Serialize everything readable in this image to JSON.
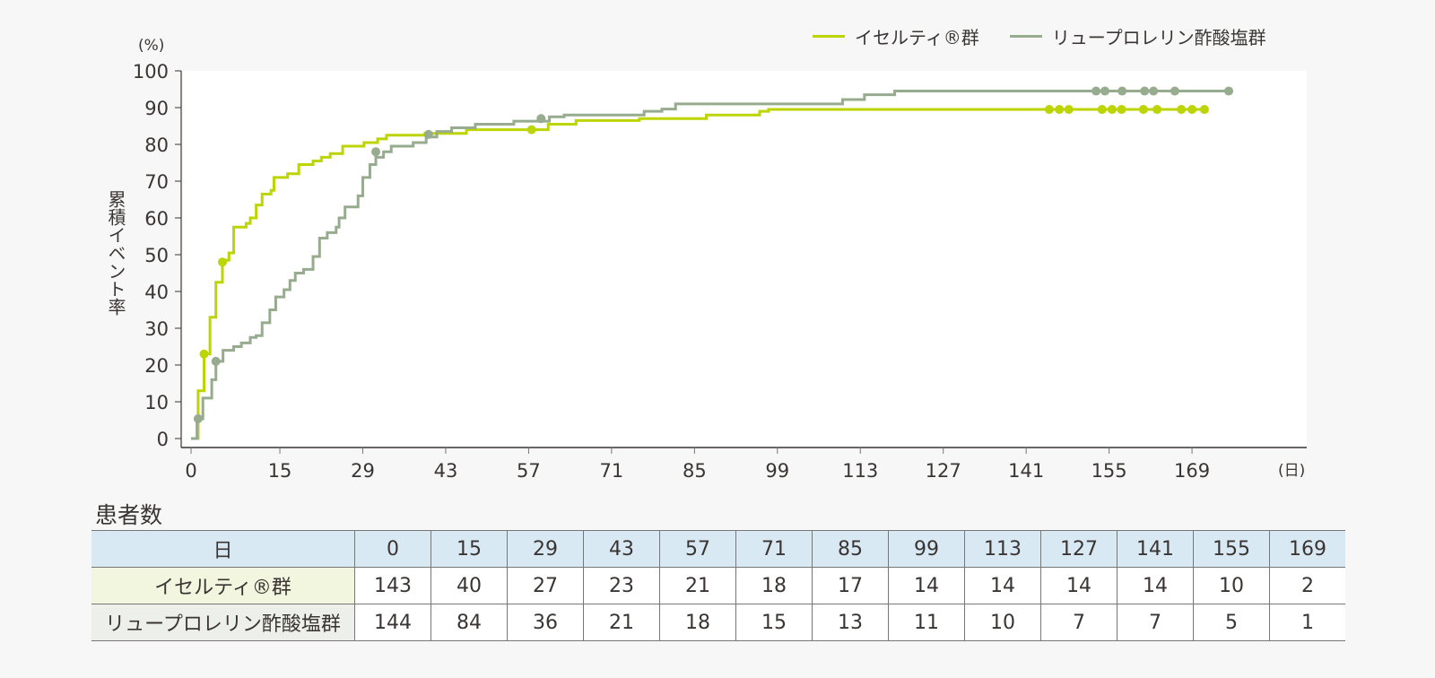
{
  "legend": {
    "series1_label": "イセルティ®群",
    "series2_label": "リュープロレリン酢酸塩群"
  },
  "axes": {
    "y_unit": "(%)",
    "x_unit": "(日)",
    "y_label": "累積イベント率"
  },
  "colors": {
    "series1": "#bcd400",
    "series2": "#97ab8e",
    "axis": "#3a3533",
    "plot_bg": "#ffffff",
    "page_bg": "#f7f7f7"
  },
  "table": {
    "title": "患者数",
    "header_label": "日",
    "days": [
      "0",
      "15",
      "29",
      "43",
      "57",
      "71",
      "85",
      "99",
      "113",
      "127",
      "141",
      "155",
      "169"
    ],
    "rows": [
      {
        "label": "イセルティ®群",
        "values": [
          "143",
          "40",
          "27",
          "23",
          "21",
          "18",
          "17",
          "14",
          "14",
          "14",
          "14",
          "10",
          "2"
        ]
      },
      {
        "label": "リュープロレリン酢酸塩群",
        "values": [
          "144",
          "84",
          "36",
          "21",
          "18",
          "15",
          "13",
          "11",
          "10",
          "7",
          "7",
          "5",
          "1"
        ]
      }
    ]
  },
  "chart_data": {
    "type": "line",
    "subtype": "kaplan-meier-cumulative-incidence-step",
    "title": "",
    "xlabel": "(日)",
    "ylabel": "累積イベント率 (%)",
    "xlim": [
      0,
      180
    ],
    "ylim": [
      0,
      100
    ],
    "x_ticks": [
      0,
      15,
      29,
      43,
      57,
      71,
      85,
      99,
      113,
      127,
      141,
      155,
      169
    ],
    "y_ticks": [
      0,
      10,
      20,
      30,
      40,
      50,
      60,
      70,
      80,
      90,
      100
    ],
    "grid": false,
    "legend_position": "top-right",
    "series": [
      {
        "name": "イセルティ®群",
        "color": "#bcd400",
        "steps": [
          [
            0,
            0
          ],
          [
            1.2,
            13
          ],
          [
            2.2,
            23
          ],
          [
            3.2,
            33
          ],
          [
            4.2,
            42.5
          ],
          [
            5.3,
            48.5
          ],
          [
            6.4,
            50.5
          ],
          [
            7.2,
            57.5
          ],
          [
            9.3,
            58.5
          ],
          [
            10.0,
            60
          ],
          [
            11.0,
            63.5
          ],
          [
            12.0,
            66.5
          ],
          [
            13.5,
            67.5
          ],
          [
            14.0,
            71
          ],
          [
            16.3,
            72
          ],
          [
            18.2,
            74.5
          ],
          [
            20.6,
            75.5
          ],
          [
            22.0,
            76.5
          ],
          [
            23.5,
            77.5
          ],
          [
            25.6,
            79.5
          ],
          [
            29.2,
            80.5
          ],
          [
            31.5,
            81.5
          ],
          [
            33.0,
            82.5
          ],
          [
            39.5,
            83
          ],
          [
            46.5,
            84
          ],
          [
            60.3,
            85.5
          ],
          [
            65.0,
            86.5
          ],
          [
            75.7,
            87
          ],
          [
            87.0,
            88
          ],
          [
            96.0,
            89
          ],
          [
            97.5,
            89.5
          ]
        ],
        "end_x": 171.1,
        "censored": [
          [
            2.2,
            23
          ],
          [
            5.3,
            48
          ],
          [
            57.5,
            84
          ],
          [
            144.9,
            89.5
          ],
          [
            146.6,
            89.5
          ],
          [
            148.2,
            89.5
          ],
          [
            153.8,
            89.5
          ],
          [
            155.5,
            89.5
          ],
          [
            157.1,
            89.5
          ],
          [
            160.8,
            89.5
          ],
          [
            163.1,
            89.5
          ],
          [
            167.2,
            89.5
          ],
          [
            169.0,
            89.5
          ],
          [
            171.1,
            89.5
          ]
        ]
      },
      {
        "name": "リュープロレリン酢酸塩群",
        "color": "#97ab8e",
        "steps": [
          [
            0,
            0
          ],
          [
            1.0,
            5.4
          ],
          [
            2.0,
            11
          ],
          [
            3.5,
            16
          ],
          [
            4.2,
            21
          ],
          [
            5.4,
            24
          ],
          [
            7.2,
            25
          ],
          [
            8.5,
            26
          ],
          [
            10.0,
            27.5
          ],
          [
            11.0,
            28
          ],
          [
            12.0,
            31.5
          ],
          [
            13.3,
            35
          ],
          [
            14.3,
            38.5
          ],
          [
            15.7,
            40.5
          ],
          [
            16.7,
            43
          ],
          [
            17.6,
            45
          ],
          [
            19.0,
            46
          ],
          [
            20.6,
            49.5
          ],
          [
            21.7,
            54.5
          ],
          [
            23.0,
            56
          ],
          [
            24.5,
            57.5
          ],
          [
            25.0,
            60
          ],
          [
            26.0,
            63
          ],
          [
            28.2,
            66
          ],
          [
            29.0,
            71
          ],
          [
            30.2,
            74.5
          ],
          [
            31.2,
            76.5
          ],
          [
            32.5,
            78
          ],
          [
            33.8,
            79.5
          ],
          [
            37.5,
            80.5
          ],
          [
            39.7,
            82
          ],
          [
            41.5,
            83.5
          ],
          [
            44.0,
            84.5
          ],
          [
            48.0,
            85.5
          ],
          [
            54.5,
            86.3
          ],
          [
            60.5,
            87.5
          ],
          [
            63.0,
            88
          ],
          [
            76.5,
            89
          ],
          [
            79.5,
            89.6
          ],
          [
            81.8,
            91
          ],
          [
            110.0,
            92.2
          ],
          [
            113.7,
            93.5
          ],
          [
            118.8,
            94.5
          ]
        ],
        "end_x": 175.2,
        "censored": [
          [
            1.2,
            5.4
          ],
          [
            4.2,
            21
          ],
          [
            31.2,
            78
          ],
          [
            40.1,
            82.7
          ],
          [
            59.1,
            87
          ],
          [
            152.8,
            94.5
          ],
          [
            154.3,
            94.5
          ],
          [
            157.2,
            94.5
          ],
          [
            161.0,
            94.5
          ],
          [
            162.5,
            94.5
          ],
          [
            166.1,
            94.5
          ],
          [
            175.2,
            94.5
          ]
        ]
      }
    ]
  }
}
